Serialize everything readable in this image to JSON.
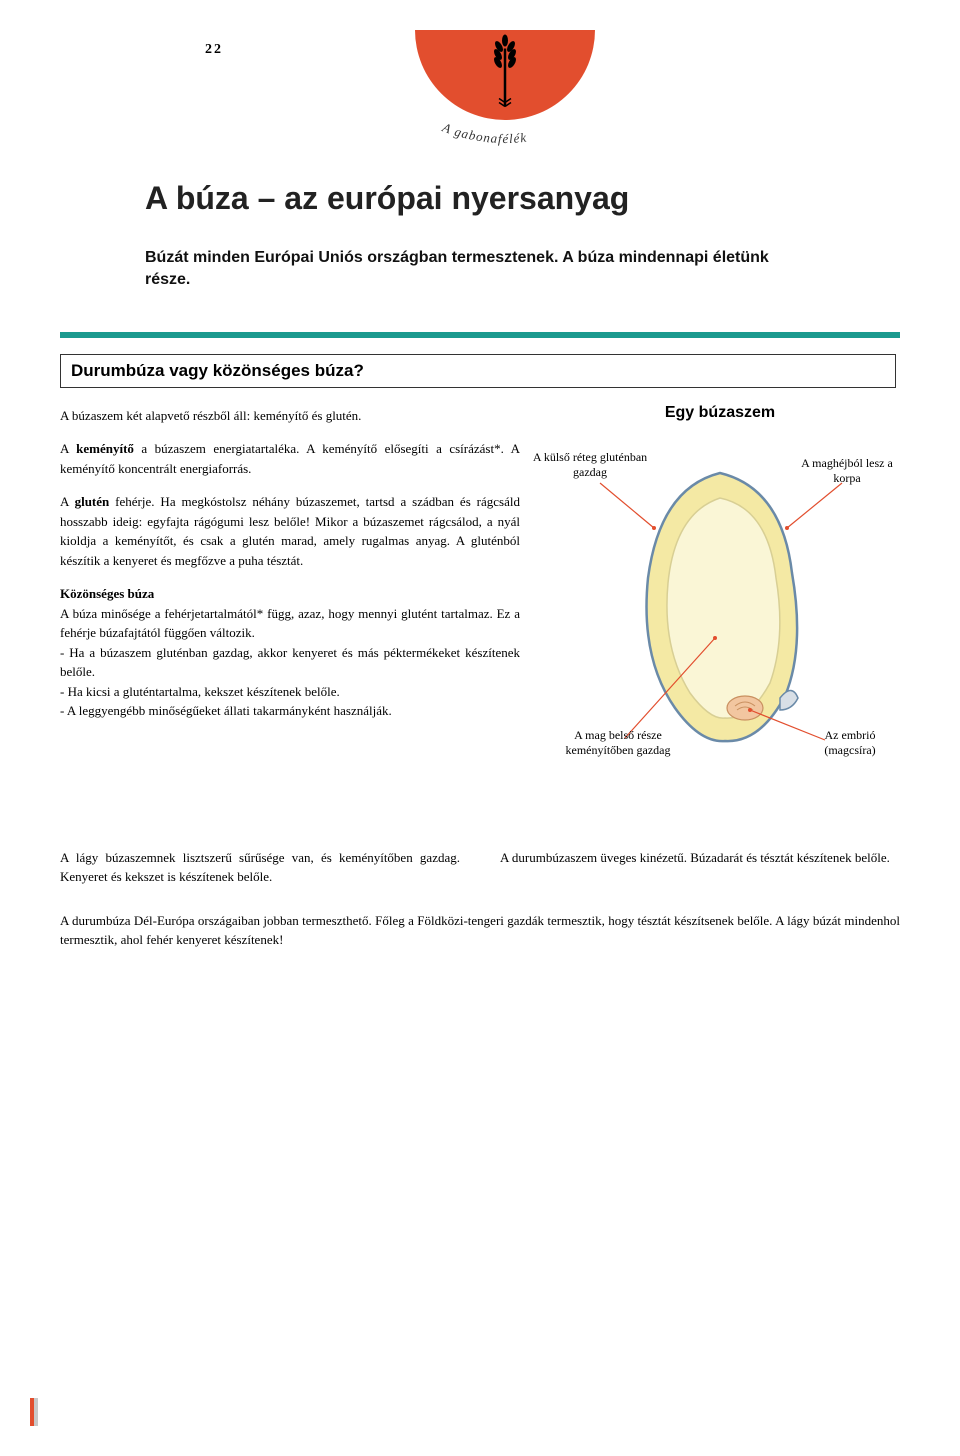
{
  "page_number": "22",
  "arc_label": "A  gabonafélék",
  "title": "A búza – az európai nyersanyag",
  "intro": "Búzát minden Európai Uniós országban termesztenek. A búza mindennapi életünk része.",
  "section_heading": "Durumbúza vagy közönséges búza?",
  "body": {
    "p1": "A búzaszem két alapvető részből áll: keményítő és glutén.",
    "p2": "A <b>keményítő</b> a búzaszem energiatartaléka. A keményítő elősegíti a csírázást*. A keményítő koncentrált energiaforrás.",
    "p3": "A <b>glutén</b> fehérje. Ha megkóstolsz néhány búzaszemet, tartsd a szádban és rágcsáld hosszabb ideig: egyfajta rágógumi lesz belőle! Mikor a búzaszemet rágcsálod, a nyál kioldja a keményítőt, és csak a glutén marad, amely rugalmas anyag. A gluténból készítik a kenyeret és megfőzve a puha tésztát.",
    "p4_heading": "Közönséges búza",
    "p4": "A búza minősége a fehérjetartalmától* függ, azaz, hogy mennyi glutént tartalmaz. Ez a fehérje búzafajtától függően változik.",
    "b1": "- Ha a búzaszem gluténban gazdag, akkor kenyeret és más péktermékeket készítenek belőle.",
    "b2": "- Ha kicsi a gluténtartalma, kekszet készítenek belőle.",
    "b3": "- A leggyengébb minőségűeket állati takarmányként használják."
  },
  "diagram": {
    "title": "Egy búzaszem",
    "label_outer": "A külső réteg gluténban gazdag",
    "label_husk": "A maghéjból lesz a korpa",
    "label_inner": "A mag belső része keményítőben gazdag",
    "label_embryo": "Az embrió (magcsíra)",
    "colors": {
      "outer_fill": "#f4e9a4",
      "outer_stroke": "#b8a24f",
      "inner_fill": "#faf6d6",
      "line": "#e24e2e",
      "embryo_fill": "#f2c6a0",
      "husk_fill": "#d8dfe6"
    }
  },
  "bottom": {
    "left": "A lágy búzaszemnek lisztszerű sűrűsége van, és keményítőben gazdag. Kenyeret és kekszet is készítenek belőle.",
    "right": "A durumbúzaszem üveges kinézetű. Búzadarát és tésztát készítenek belőle."
  },
  "final": "A durumbúza Dél-Európa országaiban jobban termeszthető. Főleg a Földközi-tengeri gazdák termesztik, hogy tésztát készítsenek belőle. A lágy búzát mindenhol termesztik, ahol fehér kenyeret készítenek!",
  "colors": {
    "accent_orange": "#e24e2e",
    "teal": "#1b9a8f",
    "text": "#000000",
    "bg": "#ffffff"
  }
}
